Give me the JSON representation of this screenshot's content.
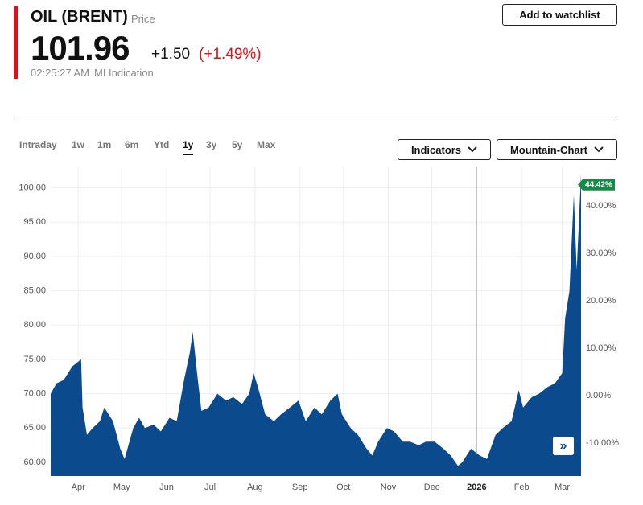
{
  "header": {
    "title": "OIL (BRENT)",
    "subtitle": "Price",
    "price": "101.96",
    "change": "+1.50",
    "change_pct": "(+1.49%)",
    "time": "02:25:27 AM",
    "source": "MI Indication",
    "watch_button": "Add to watchlist"
  },
  "tabs": {
    "items": [
      "Intraday",
      "1w",
      "1m",
      "6m",
      "Ytd",
      "1y",
      "3y",
      "5y",
      "Max"
    ],
    "active": 5
  },
  "controls": {
    "indicators": "Indicators",
    "chart_type": "Mountain-Chart"
  },
  "chart_data": {
    "type": "area",
    "color": "#0b4a8c",
    "grid": true,
    "x": [
      0,
      4,
      9,
      15,
      21,
      22,
      25,
      29,
      34,
      37,
      43,
      48,
      51,
      57,
      61,
      65,
      71,
      76,
      82,
      87,
      92,
      96,
      98,
      101,
      104,
      109,
      115,
      121,
      126,
      132,
      137,
      140,
      143,
      148,
      154,
      159,
      165,
      171,
      176,
      182,
      187,
      193,
      198,
      201,
      207,
      212,
      218,
      222,
      226,
      232,
      237,
      243,
      248,
      254,
      259,
      265,
      271,
      276,
      281,
      284,
      290,
      296,
      301,
      307,
      312,
      318,
      323,
      326,
      332,
      337,
      343,
      348,
      353,
      355,
      358,
      361,
      363,
      366
    ],
    "series": [
      {
        "values": [
          70,
          71.5,
          72,
          74,
          75,
          68,
          64,
          65,
          66,
          68,
          66,
          62,
          60.5,
          65,
          66.5,
          65,
          65.5,
          64.5,
          66.5,
          66,
          72,
          76,
          79,
          73,
          67.5,
          68,
          70,
          69,
          69.5,
          68.5,
          70,
          73,
          71,
          67,
          66,
          67,
          68,
          69,
          66,
          68,
          67,
          69,
          70,
          67,
          65,
          64,
          62,
          61,
          63,
          65,
          64.5,
          63,
          63,
          62.5,
          63,
          63,
          62,
          61,
          59.5,
          60,
          62,
          61,
          60.5,
          64,
          65,
          66,
          70.5,
          68,
          69.5,
          70,
          71,
          71.5,
          73,
          81,
          85,
          99,
          88,
          101.96
        ]
      }
    ],
    "xlim": [
      0,
      366
    ],
    "xticks": [
      {
        "value": 19,
        "label": "Apr"
      },
      {
        "value": 49,
        "label": "May"
      },
      {
        "value": 80,
        "label": "Jun"
      },
      {
        "value": 110,
        "label": "Jul"
      },
      {
        "value": 141,
        "label": "Aug"
      },
      {
        "value": 172,
        "label": "Sep"
      },
      {
        "value": 202,
        "label": "Oct"
      },
      {
        "value": 233,
        "label": "Nov"
      },
      {
        "value": 263,
        "label": "Dec"
      },
      {
        "value": 294,
        "label": "2026"
      },
      {
        "value": 325,
        "label": "Feb"
      },
      {
        "value": 353,
        "label": "Mar"
      }
    ],
    "ylim": [
      58,
      103
    ],
    "yticks": [
      {
        "value": 60,
        "label": "60.00"
      },
      {
        "value": 65,
        "label": "65.00"
      },
      {
        "value": 70,
        "label": "70.00"
      },
      {
        "value": 75,
        "label": "75.00"
      },
      {
        "value": 80,
        "label": "80.00"
      },
      {
        "value": 85,
        "label": "85.00"
      },
      {
        "value": 90,
        "label": "90.00"
      },
      {
        "value": 95,
        "label": "95.00"
      },
      {
        "value": 100,
        "label": "100.00"
      }
    ],
    "y2lim": [
      -16.9,
      48.1
    ],
    "y2ticks": [
      {
        "value": -10,
        "label": "-10.00%"
      },
      {
        "value": 0,
        "label": "0.00%"
      },
      {
        "value": 10,
        "label": "10.00%"
      },
      {
        "value": 20,
        "label": "20.00%"
      },
      {
        "value": 30,
        "label": "30.00%"
      },
      {
        "value": 40,
        "label": "40.00%"
      }
    ],
    "last_change": {
      "value": 44.42,
      "label": "44.42%"
    }
  }
}
